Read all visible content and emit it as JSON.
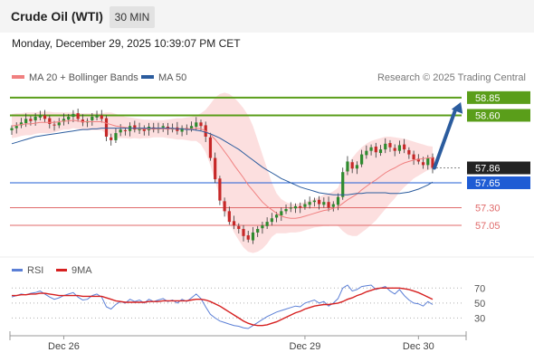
{
  "header": {
    "title": "Crude Oil (WTI)",
    "timeframe": "30 MIN"
  },
  "datetime": "Monday, December 29, 2025 10:39:07 PM CET",
  "legend": {
    "ma20": "MA 20 + Bollinger Bands",
    "ma50": "MA 50"
  },
  "credit": "Research © 2025 Trading Central",
  "rsi_legend": {
    "rsi": "RSI",
    "ma": "9MA"
  },
  "colors": {
    "ma20": "#f08080",
    "ma50": "#2b5c9e",
    "bollinger_fill": "#fbd9d9",
    "target": "#5a9e1a",
    "pivot": "#1f5cd4",
    "support": "#e06a6a",
    "current": "#222222",
    "up_candle": "#2e8b2e",
    "down_candle": "#c62828",
    "arrow": "#2b5c9e",
    "rsi": "#5b7fd6",
    "rsi_ma": "#d62020"
  },
  "chart_data": [
    {
      "type": "candlestick",
      "title": "",
      "y_range": [
        56.63,
        58.95
      ],
      "x_tick_labels": [
        "Dec 26",
        "Dec 29",
        "Dec 30"
      ],
      "levels": [
        {
          "label": "58.85",
          "value": 58.85,
          "kind": "target"
        },
        {
          "label": "58.60",
          "value": 58.6,
          "kind": "target"
        },
        {
          "label": "57.86",
          "value": 57.86,
          "kind": "current"
        },
        {
          "label": "57.65",
          "value": 57.65,
          "kind": "pivot"
        },
        {
          "label": "57.30",
          "value": 57.3,
          "kind": "support"
        },
        {
          "label": "57.05",
          "value": 57.05,
          "kind": "support"
        }
      ],
      "close": [
        58.42,
        58.45,
        58.5,
        58.55,
        58.52,
        58.58,
        58.6,
        58.55,
        58.48,
        58.46,
        58.5,
        58.55,
        58.58,
        58.62,
        58.55,
        58.5,
        58.52,
        58.58,
        58.6,
        58.55,
        58.3,
        58.25,
        58.35,
        58.4,
        58.38,
        58.45,
        58.4,
        58.42,
        58.38,
        58.44,
        58.4,
        58.42,
        58.45,
        58.4,
        58.42,
        58.38,
        58.42,
        58.4,
        58.45,
        58.5,
        58.45,
        58.3,
        58.0,
        57.7,
        57.4,
        57.25,
        57.1,
        57.05,
        57.0,
        56.9,
        56.85,
        56.95,
        57.0,
        57.05,
        57.1,
        57.15,
        57.2,
        57.25,
        57.28,
        57.3,
        57.32,
        57.3,
        57.35,
        57.38,
        57.4,
        57.35,
        57.38,
        57.3,
        57.35,
        57.45,
        57.8,
        57.95,
        57.85,
        57.9,
        58.05,
        58.1,
        58.15,
        58.08,
        58.12,
        58.2,
        58.15,
        58.1,
        58.18,
        58.12,
        58.05,
        57.98,
        57.95,
        57.9,
        58.0,
        57.86
      ],
      "ma20": [
        58.45,
        58.46,
        58.47,
        58.48,
        58.48,
        58.49,
        58.5,
        58.5,
        58.5,
        58.5,
        58.51,
        58.52,
        58.52,
        58.53,
        58.52,
        58.51,
        58.51,
        58.51,
        58.51,
        58.51,
        58.49,
        58.47,
        58.45,
        58.44,
        58.43,
        58.42,
        58.42,
        58.41,
        58.41,
        58.41,
        58.41,
        58.41,
        58.41,
        58.41,
        58.41,
        58.41,
        58.41,
        58.41,
        58.41,
        58.42,
        58.41,
        58.38,
        58.33,
        58.26,
        58.18,
        58.09,
        58.0,
        57.9,
        57.81,
        57.72,
        57.62,
        57.54,
        57.46,
        57.38,
        57.32,
        57.27,
        57.22,
        57.18,
        57.16,
        57.15,
        57.15,
        57.16,
        57.18,
        57.2,
        57.22,
        57.24,
        57.26,
        57.27,
        57.29,
        57.31,
        57.36,
        57.41,
        57.45,
        57.49,
        57.55,
        57.6,
        57.65,
        57.69,
        57.74,
        57.79,
        57.83,
        57.86,
        57.9,
        57.93,
        57.95,
        57.97,
        57.98,
        57.99,
        58.0,
        58.0
      ],
      "ma50": [
        58.2,
        58.22,
        58.24,
        58.26,
        58.28,
        58.3,
        58.31,
        58.32,
        58.33,
        58.34,
        58.35,
        58.36,
        58.37,
        58.38,
        58.39,
        58.4,
        58.4,
        58.41,
        58.41,
        58.42,
        58.42,
        58.42,
        58.42,
        58.42,
        58.42,
        58.42,
        58.42,
        58.42,
        58.42,
        58.42,
        58.42,
        58.42,
        58.42,
        58.42,
        58.42,
        58.41,
        58.41,
        58.4,
        58.4,
        58.39,
        58.38,
        58.36,
        58.34,
        58.31,
        58.28,
        58.24,
        58.2,
        58.16,
        58.12,
        58.07,
        58.02,
        57.97,
        57.92,
        57.87,
        57.83,
        57.79,
        57.75,
        57.71,
        57.68,
        57.65,
        57.62,
        57.59,
        57.57,
        57.55,
        57.53,
        57.51,
        57.5,
        57.49,
        57.48,
        57.48,
        57.48,
        57.48,
        57.49,
        57.5,
        57.5,
        57.51,
        57.51,
        57.51,
        57.51,
        57.51,
        57.5,
        57.5,
        57.5,
        57.51,
        57.52,
        57.54,
        57.56,
        57.59,
        57.62,
        57.66
      ],
      "bollinger_upper": [
        58.62,
        58.63,
        58.63,
        58.64,
        58.64,
        58.64,
        58.65,
        58.65,
        58.65,
        58.64,
        58.64,
        58.64,
        58.64,
        58.64,
        58.63,
        58.63,
        58.63,
        58.63,
        58.63,
        58.63,
        58.64,
        58.64,
        58.62,
        58.6,
        58.58,
        58.57,
        58.56,
        58.55,
        58.54,
        58.54,
        58.53,
        58.53,
        58.53,
        58.54,
        58.55,
        58.56,
        58.56,
        58.57,
        58.58,
        58.6,
        58.63,
        58.68,
        58.76,
        58.85,
        58.9,
        58.92,
        58.9,
        58.85,
        58.78,
        58.7,
        58.6,
        58.45,
        58.25,
        58.05,
        57.85,
        57.65,
        57.5,
        57.42,
        57.38,
        57.35,
        57.35,
        57.36,
        57.38,
        57.4,
        57.42,
        57.45,
        57.48,
        57.5,
        57.53,
        57.58,
        57.75,
        57.9,
        58.0,
        58.08,
        58.15,
        58.2,
        58.24,
        58.26,
        58.28,
        58.3,
        58.3,
        58.29,
        58.28,
        58.27,
        58.25,
        58.23,
        58.21,
        58.19,
        58.17,
        58.16
      ],
      "bollinger_lower": [
        58.28,
        58.29,
        58.31,
        58.32,
        58.32,
        58.34,
        58.35,
        58.35,
        58.35,
        58.36,
        58.38,
        58.4,
        58.4,
        58.42,
        58.41,
        58.39,
        58.39,
        58.39,
        58.39,
        58.39,
        58.34,
        58.3,
        58.28,
        58.28,
        58.28,
        58.27,
        58.28,
        58.27,
        58.28,
        58.28,
        58.29,
        58.29,
        58.29,
        58.28,
        58.27,
        58.26,
        58.26,
        58.25,
        58.24,
        58.24,
        58.19,
        58.08,
        57.9,
        57.67,
        57.46,
        57.26,
        57.1,
        56.95,
        56.84,
        56.74,
        56.68,
        56.66,
        56.68,
        56.72,
        56.79,
        56.89,
        56.94,
        56.94,
        56.94,
        56.95,
        56.95,
        56.96,
        56.98,
        57.0,
        57.02,
        57.03,
        57.04,
        57.04,
        57.05,
        57.04,
        56.97,
        56.92,
        56.9,
        56.9,
        56.95,
        57.0,
        57.06,
        57.12,
        57.2,
        57.28,
        57.36,
        57.43,
        57.52,
        57.59,
        57.65,
        57.71,
        57.75,
        57.79,
        57.83,
        57.84
      ],
      "forecast_arrow": {
        "from": 57.86,
        "to": 58.75
      }
    },
    {
      "type": "line",
      "title": "",
      "y_tick_labels": [
        "70",
        "50",
        "30"
      ],
      "y_range": [
        10,
        80
      ],
      "series": [
        {
          "name": "RSI",
          "values": [
            58,
            60,
            62,
            61,
            63,
            64,
            66,
            62,
            58,
            55,
            57,
            60,
            62,
            64,
            58,
            54,
            55,
            60,
            62,
            58,
            45,
            42,
            48,
            52,
            50,
            55,
            52,
            54,
            50,
            55,
            52,
            54,
            56,
            52,
            54,
            50,
            55,
            52,
            57,
            62,
            56,
            45,
            35,
            30,
            26,
            24,
            22,
            20,
            19,
            17,
            16,
            20,
            24,
            28,
            32,
            35,
            38,
            40,
            42,
            44,
            46,
            45,
            50,
            52,
            54,
            50,
            52,
            46,
            50,
            56,
            70,
            74,
            66,
            68,
            72,
            73,
            74,
            68,
            70,
            72,
            66,
            62,
            68,
            60,
            54,
            50,
            49,
            46,
            52,
            48
          ]
        },
        {
          "name": "9MA",
          "values": [
            60,
            60,
            61,
            61,
            62,
            62,
            63,
            63,
            62,
            61,
            60,
            60,
            60,
            60,
            60,
            59,
            59,
            59,
            59,
            59,
            57,
            55,
            53,
            52,
            51,
            51,
            51,
            51,
            51,
            52,
            52,
            52,
            53,
            53,
            53,
            53,
            53,
            53,
            54,
            55,
            55,
            54,
            52,
            49,
            46,
            42,
            38,
            34,
            30,
            26,
            23,
            21,
            20,
            20,
            21,
            23,
            25,
            28,
            31,
            34,
            37,
            39,
            42,
            44,
            46,
            47,
            48,
            48,
            49,
            50,
            52,
            55,
            57,
            60,
            62,
            65,
            67,
            69,
            70,
            70,
            70,
            70,
            70,
            69,
            68,
            66,
            64,
            61,
            58,
            55
          ]
        }
      ]
    }
  ]
}
